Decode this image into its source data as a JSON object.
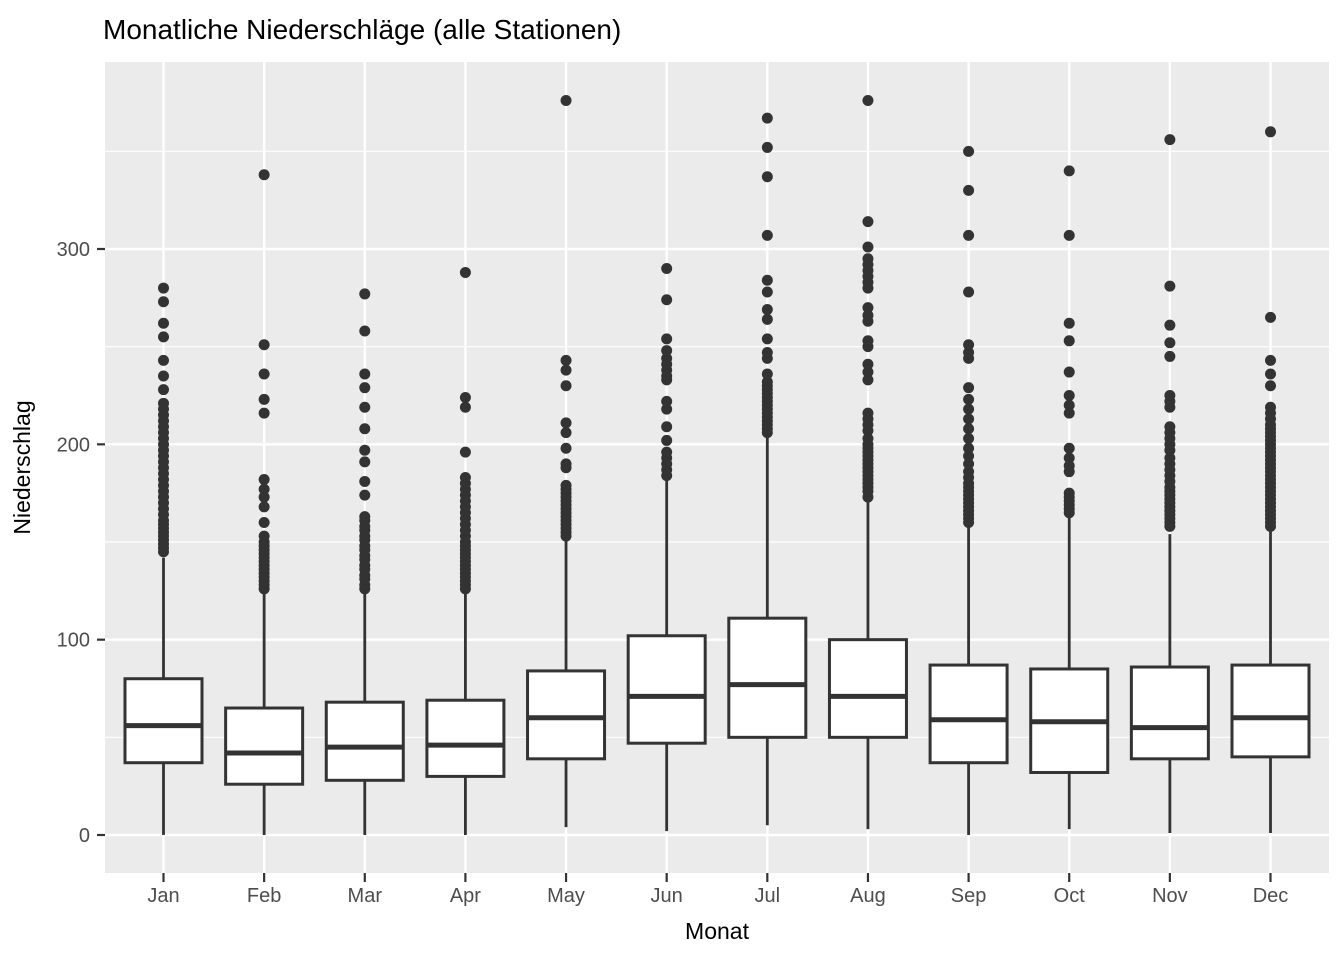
{
  "title": "Monatliche Niederschläge (alle Stationen)",
  "chart_data": {
    "type": "boxplot",
    "title": "Monatliche Niederschläge (alle Stationen)",
    "xlabel": "Monat",
    "ylabel": "Niederschlag",
    "categories": [
      "Jan",
      "Feb",
      "Mar",
      "Apr",
      "May",
      "Jun",
      "Jul",
      "Aug",
      "Sep",
      "Oct",
      "Nov",
      "Dec"
    ],
    "y_ticks": [
      0,
      100,
      200,
      300
    ],
    "y_minor_ticks": [
      50,
      150,
      250,
      350
    ],
    "ylim": [
      -19,
      396
    ],
    "grid": "on",
    "legend": "none",
    "colors": {
      "background": "#FFFFFF",
      "panel_bg": "#EBEBEB",
      "grid": "#FFFFFF",
      "box_stroke": "#333333",
      "box_fill": "#FFFFFF",
      "point": "#333333",
      "tick": "#333333",
      "tick_label": "#4D4D4D",
      "text": "#000000"
    },
    "series": [
      {
        "label": "Jan",
        "whisker_low": 0,
        "q1": 37,
        "median": 56,
        "q3": 80,
        "whisker_high": 142,
        "outliers": [
          145,
          147,
          149,
          151,
          153,
          155,
          157,
          159,
          161,
          164,
          167,
          170,
          173,
          176,
          179,
          182,
          185,
          188,
          191,
          194,
          197,
          200,
          203,
          206,
          209,
          212,
          215,
          218,
          221,
          228,
          235,
          243,
          255,
          262,
          273,
          280
        ]
      },
      {
        "label": "Feb",
        "whisker_low": 0,
        "q1": 26,
        "median": 42,
        "q3": 65,
        "whisker_high": 124,
        "outliers": [
          126,
          128,
          130,
          132,
          134,
          136,
          138,
          140,
          142,
          144,
          146,
          148,
          150,
          153,
          160,
          168,
          173,
          177,
          182,
          216,
          223,
          236,
          251,
          338
        ]
      },
      {
        "label": "Mar",
        "whisker_low": 0,
        "q1": 28,
        "median": 45,
        "q3": 68,
        "whisker_high": 125,
        "outliers": [
          126,
          128,
          131,
          133,
          136,
          138,
          141,
          143,
          146,
          148,
          151,
          153,
          156,
          158,
          161,
          163,
          174,
          181,
          191,
          197,
          208,
          219,
          229,
          236,
          258,
          277
        ]
      },
      {
        "label": "Apr",
        "whisker_low": 0,
        "q1": 30,
        "median": 46,
        "q3": 69,
        "whisker_high": 125,
        "outliers": [
          126,
          128,
          130,
          132,
          134,
          136,
          138,
          140,
          142,
          144,
          146,
          148,
          150,
          153,
          156,
          159,
          162,
          165,
          168,
          171,
          174,
          177,
          180,
          183,
          196,
          219,
          224,
          288
        ]
      },
      {
        "label": "May",
        "whisker_low": 4,
        "q1": 39,
        "median": 60,
        "q3": 84,
        "whisker_high": 152,
        "outliers": [
          153,
          155,
          157,
          159,
          161,
          163,
          165,
          167,
          169,
          171,
          173,
          175,
          177,
          179,
          188,
          190,
          198,
          206,
          211,
          230,
          238,
          243,
          376
        ]
      },
      {
        "label": "Jun",
        "whisker_low": 2,
        "q1": 47,
        "median": 71,
        "q3": 102,
        "whisker_high": 183,
        "outliers": [
          184,
          187,
          190,
          193,
          196,
          202,
          209,
          218,
          222,
          233,
          235,
          238,
          241,
          244,
          248,
          254,
          274,
          290
        ]
      },
      {
        "label": "Jul",
        "whisker_low": 5,
        "q1": 50,
        "median": 77,
        "q3": 111,
        "whisker_high": 204,
        "outliers": [
          206,
          208,
          210,
          212,
          214,
          216,
          218,
          220,
          222,
          224,
          226,
          228,
          230,
          232,
          236,
          244,
          247,
          254,
          264,
          269,
          278,
          284,
          307,
          337,
          352,
          367
        ]
      },
      {
        "label": "Aug",
        "whisker_low": 3,
        "q1": 50,
        "median": 71,
        "q3": 100,
        "whisker_high": 172,
        "outliers": [
          173,
          176,
          178,
          180,
          182,
          184,
          186,
          188,
          190,
          192,
          194,
          196,
          198,
          200,
          203,
          207,
          210,
          213,
          216,
          233,
          237,
          241,
          250,
          253,
          263,
          266,
          270,
          280,
          283,
          286,
          289,
          292,
          295,
          301,
          314,
          376
        ]
      },
      {
        "label": "Sep",
        "whisker_low": 0,
        "q1": 37,
        "median": 59,
        "q3": 87,
        "whisker_high": 159,
        "outliers": [
          160,
          162,
          164,
          166,
          168,
          170,
          172,
          174,
          176,
          178,
          180,
          183,
          186,
          190,
          194,
          198,
          203,
          208,
          213,
          218,
          223,
          229,
          244,
          247,
          251,
          278,
          307,
          330,
          350
        ]
      },
      {
        "label": "Oct",
        "whisker_low": 3,
        "q1": 32,
        "median": 58,
        "q3": 85,
        "whisker_high": 164,
        "outliers": [
          165,
          167,
          169,
          171,
          173,
          175,
          186,
          189,
          193,
          198,
          216,
          220,
          225,
          237,
          253,
          262,
          307,
          340
        ]
      },
      {
        "label": "Nov",
        "whisker_low": 1,
        "q1": 39,
        "median": 55,
        "q3": 86,
        "whisker_high": 154,
        "outliers": [
          158,
          160,
          162,
          164,
          166,
          168,
          170,
          172,
          174,
          176,
          178,
          181,
          184,
          187,
          190,
          193,
          197,
          200,
          203,
          206,
          209,
          219,
          222,
          225,
          245,
          252,
          261,
          281,
          356
        ]
      },
      {
        "label": "Dec",
        "whisker_low": 1,
        "q1": 40,
        "median": 60,
        "q3": 87,
        "whisker_high": 157,
        "outliers": [
          158,
          160,
          162,
          164,
          166,
          168,
          170,
          172,
          174,
          176,
          178,
          180,
          182,
          184,
          186,
          188,
          190,
          192,
          194,
          196,
          198,
          200,
          202,
          204,
          206,
          208,
          210,
          213,
          216,
          219,
          230,
          236,
          243,
          265,
          360
        ]
      }
    ]
  }
}
